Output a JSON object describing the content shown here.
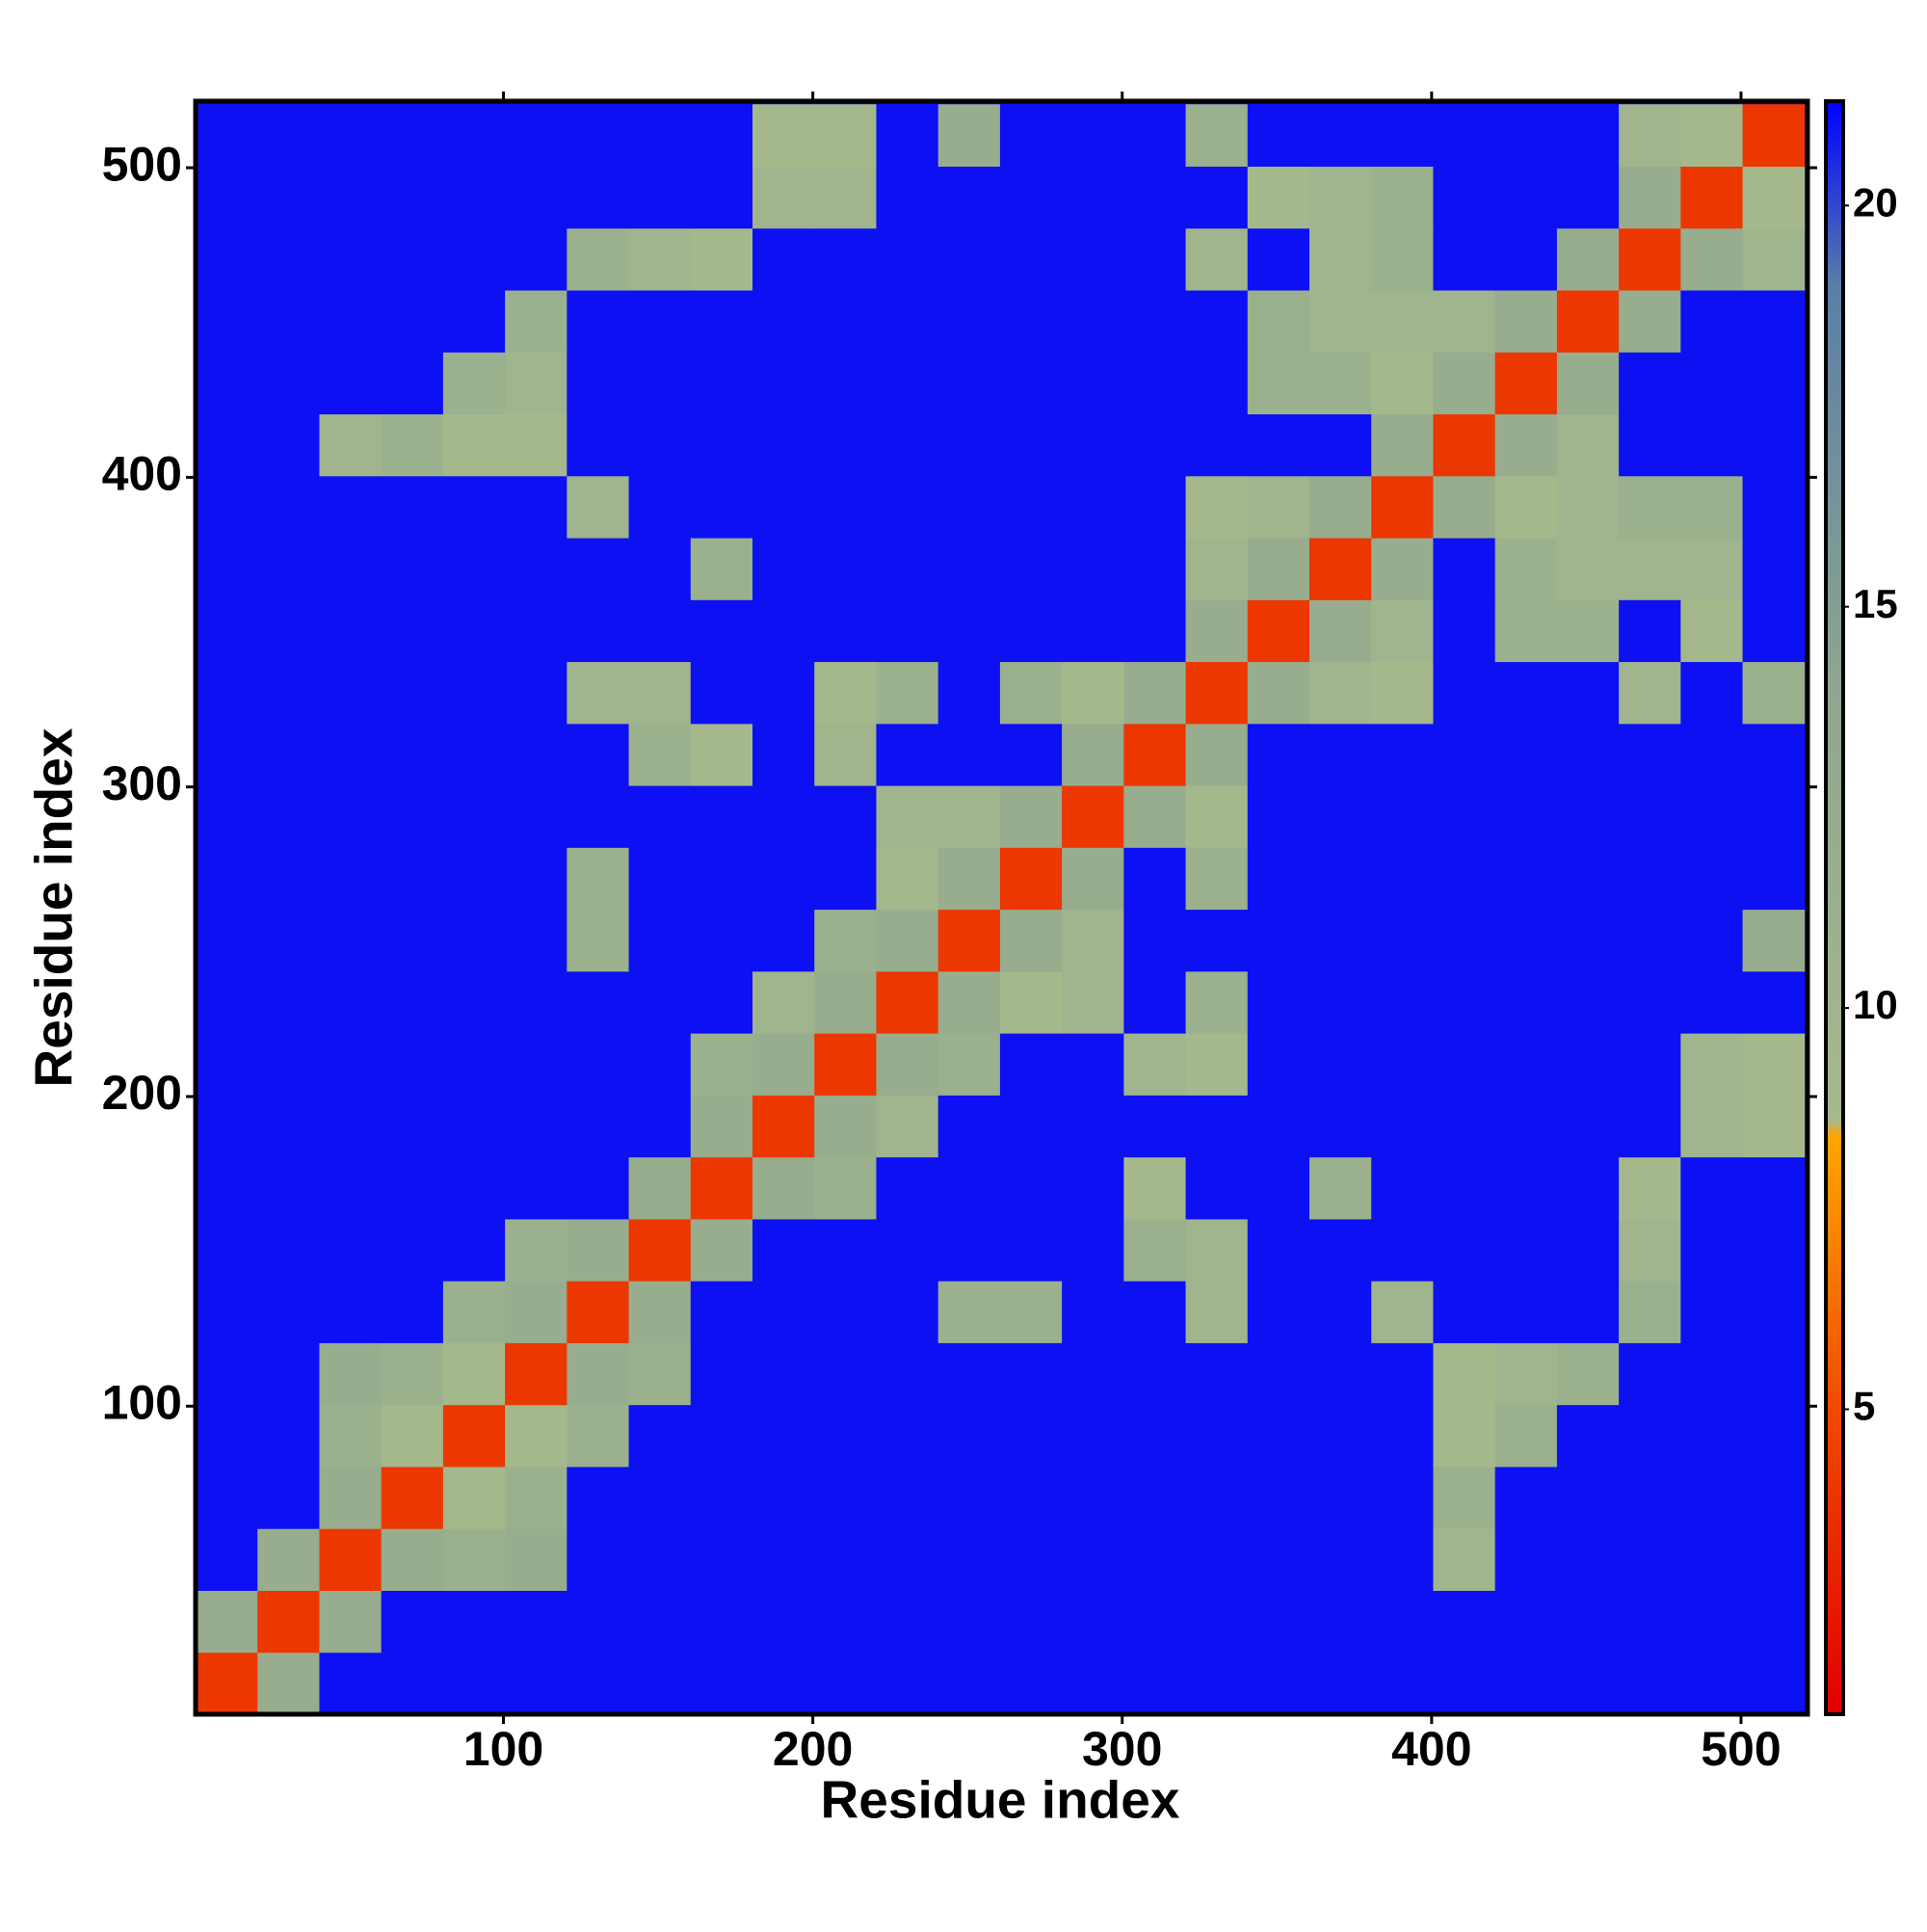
{
  "chart_data": {
    "type": "heatmap",
    "xlabel": "Residue index",
    "ylabel": "Residue index",
    "xlim": [
      0.5,
      521.5
    ],
    "ylim": [
      0.5,
      521.5
    ],
    "xticks": [
      100,
      200,
      300,
      400,
      500
    ],
    "yticks": [
      100,
      200,
      300,
      400,
      500
    ],
    "bins": [
      0.5,
      20.5,
      40.5,
      60.5,
      80.5,
      100.5,
      120.5,
      140.5,
      160.5,
      180.5,
      200.5,
      220.5,
      240.5,
      260.5,
      280.5,
      300.5,
      320.5,
      340.5,
      360.5,
      380.5,
      400.5,
      420.5,
      440.5,
      460.5,
      480.5,
      500.5,
      520.5
    ],
    "z": [
      [
        4,
        12,
        21,
        21,
        21,
        21,
        21,
        21,
        21,
        21,
        21,
        21,
        21,
        21,
        21,
        21,
        21,
        21,
        21,
        21,
        21,
        21,
        21,
        21,
        21,
        21
      ],
      [
        12,
        4,
        12,
        21,
        21,
        21,
        21,
        21,
        21,
        21,
        21,
        21,
        21,
        21,
        21,
        21,
        21,
        21,
        21,
        21,
        21,
        21,
        21,
        21,
        21,
        21
      ],
      [
        21,
        12,
        4,
        12,
        11,
        12,
        21,
        21,
        21,
        21,
        21,
        21,
        21,
        21,
        21,
        21,
        21,
        21,
        21,
        21,
        10,
        21,
        21,
        21,
        21,
        21
      ],
      [
        21,
        21,
        12,
        4,
        9,
        11,
        21,
        21,
        21,
        21,
        21,
        21,
        21,
        21,
        21,
        21,
        21,
        21,
        21,
        21,
        11,
        21,
        21,
        21,
        21,
        21
      ],
      [
        21,
        21,
        11,
        9,
        4,
        9,
        11,
        21,
        21,
        21,
        21,
        21,
        21,
        21,
        21,
        21,
        21,
        21,
        21,
        21,
        9,
        11,
        21,
        21,
        21,
        21
      ],
      [
        21,
        21,
        12,
        11,
        9,
        4,
        12,
        11,
        21,
        21,
        21,
        21,
        21,
        21,
        21,
        21,
        21,
        21,
        21,
        21,
        9,
        10,
        11,
        21,
        21,
        21
      ],
      [
        21,
        21,
        21,
        21,
        11,
        12,
        4,
        12,
        21,
        21,
        21,
        21,
        11,
        11,
        21,
        21,
        10,
        21,
        21,
        10,
        21,
        21,
        21,
        11,
        21,
        21
      ],
      [
        21,
        21,
        21,
        21,
        21,
        11,
        12,
        4,
        12,
        21,
        21,
        21,
        21,
        21,
        21,
        11,
        10,
        21,
        21,
        21,
        21,
        21,
        21,
        10,
        21,
        21
      ],
      [
        21,
        21,
        21,
        21,
        21,
        21,
        21,
        12,
        4,
        12,
        11,
        21,
        21,
        21,
        21,
        9,
        21,
        21,
        11,
        21,
        21,
        21,
        21,
        9,
        21,
        21
      ],
      [
        21,
        21,
        21,
        21,
        21,
        21,
        21,
        21,
        12,
        4,
        12,
        10,
        21,
        21,
        21,
        21,
        21,
        21,
        21,
        21,
        21,
        21,
        21,
        21,
        10,
        9
      ],
      [
        21,
        21,
        21,
        21,
        21,
        21,
        21,
        21,
        11,
        12,
        4,
        12,
        11,
        21,
        21,
        10,
        9,
        21,
        21,
        21,
        21,
        21,
        21,
        21,
        10,
        9
      ],
      [
        21,
        21,
        21,
        21,
        21,
        21,
        21,
        21,
        21,
        10,
        12,
        4,
        12,
        9,
        10,
        21,
        11,
        21,
        21,
        21,
        21,
        21,
        21,
        21,
        21,
        21
      ],
      [
        21,
        21,
        21,
        21,
        21,
        21,
        11,
        21,
        21,
        21,
        11,
        12,
        4,
        12,
        10,
        21,
        21,
        21,
        21,
        21,
        21,
        21,
        21,
        21,
        21,
        12
      ],
      [
        21,
        21,
        21,
        21,
        21,
        21,
        11,
        21,
        21,
        21,
        21,
        9,
        12,
        4,
        12,
        21,
        11,
        21,
        21,
        21,
        21,
        21,
        21,
        21,
        21,
        21
      ],
      [
        21,
        21,
        21,
        21,
        21,
        21,
        21,
        21,
        21,
        21,
        21,
        10,
        10,
        12,
        4,
        12,
        9,
        21,
        21,
        21,
        21,
        21,
        21,
        21,
        21,
        21
      ],
      [
        21,
        21,
        21,
        21,
        21,
        21,
        21,
        11,
        9,
        21,
        10,
        21,
        21,
        21,
        12,
        4,
        12,
        21,
        21,
        21,
        21,
        21,
        21,
        21,
        21,
        21
      ],
      [
        21,
        21,
        21,
        21,
        21,
        21,
        10,
        10,
        21,
        21,
        9,
        11,
        21,
        11,
        9,
        12,
        4,
        12,
        10,
        9,
        21,
        21,
        21,
        10,
        21,
        11
      ],
      [
        21,
        21,
        21,
        21,
        21,
        21,
        21,
        21,
        21,
        21,
        21,
        21,
        21,
        21,
        21,
        21,
        12,
        4,
        12,
        10,
        21,
        11,
        11,
        21,
        9,
        21
      ],
      [
        21,
        21,
        21,
        21,
        21,
        21,
        21,
        21,
        11,
        21,
        21,
        21,
        21,
        21,
        21,
        21,
        10,
        12,
        4,
        12,
        21,
        11,
        10,
        10,
        10,
        21
      ],
      [
        21,
        21,
        21,
        21,
        21,
        21,
        10,
        21,
        21,
        21,
        21,
        21,
        21,
        21,
        21,
        21,
        9,
        10,
        12,
        4,
        12,
        9,
        10,
        11,
        11,
        21
      ],
      [
        21,
        21,
        10,
        11,
        9,
        9,
        21,
        21,
        21,
        21,
        21,
        21,
        21,
        21,
        21,
        21,
        21,
        21,
        21,
        12,
        4,
        12,
        10,
        21,
        21,
        21
      ],
      [
        21,
        21,
        21,
        21,
        11,
        10,
        21,
        21,
        21,
        21,
        21,
        21,
        21,
        21,
        21,
        21,
        21,
        11,
        11,
        9,
        12,
        4,
        12,
        21,
        21,
        21
      ],
      [
        21,
        21,
        21,
        21,
        21,
        11,
        21,
        21,
        21,
        21,
        21,
        21,
        21,
        21,
        21,
        21,
        21,
        11,
        10,
        10,
        10,
        12,
        4,
        12,
        21,
        21
      ],
      [
        21,
        21,
        21,
        21,
        21,
        21,
        11,
        10,
        9,
        21,
        21,
        21,
        21,
        21,
        21,
        21,
        10,
        21,
        10,
        11,
        21,
        21,
        12,
        4,
        12,
        10
      ],
      [
        21,
        21,
        21,
        21,
        21,
        21,
        21,
        21,
        21,
        10,
        10,
        21,
        21,
        21,
        21,
        21,
        21,
        9,
        10,
        11,
        21,
        21,
        21,
        12,
        4,
        9
      ],
      [
        21,
        21,
        21,
        21,
        21,
        21,
        21,
        21,
        21,
        9,
        9,
        21,
        12,
        21,
        21,
        21,
        11,
        21,
        21,
        21,
        21,
        21,
        21,
        10,
        9,
        4
      ]
    ],
    "clim": [
      1.2,
      21.3
    ],
    "cticks": [
      5,
      10,
      15,
      20
    ],
    "colorscale": [
      {
        "value": 1.2,
        "color": "#e00000"
      },
      {
        "value": 5,
        "color": "#f04a00"
      },
      {
        "value": 8.4,
        "color": "#ffa500"
      },
      {
        "value": 8.6,
        "color": "#a6b98c"
      },
      {
        "value": 14,
        "color": "#8ea68f"
      },
      {
        "value": 19,
        "color": "#5a7ea6"
      },
      {
        "value": 21.3,
        "color": "#0000ff"
      }
    ]
  }
}
